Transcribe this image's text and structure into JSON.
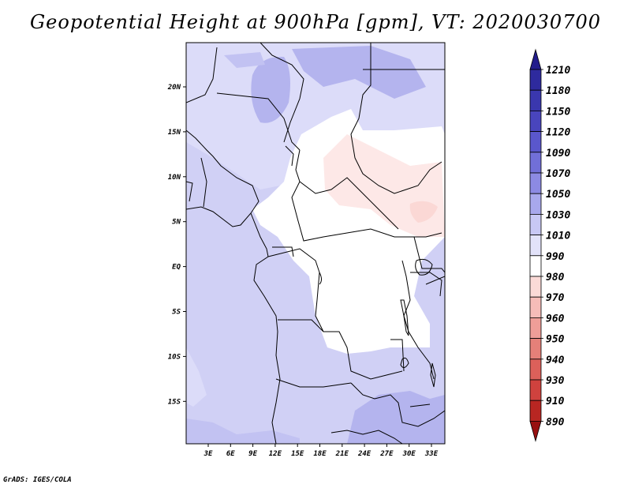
{
  "title": "Geopotential Height at 900hPa [gpm], VT: 2020030700",
  "footer": "GrADS: IGES/COLA",
  "map": {
    "variable": "Geopotential Height",
    "level": "900hPa",
    "units": "gpm",
    "valid_time": "2020030700",
    "lat_labels": [
      "20N",
      "15N",
      "10N",
      "5N",
      "EQ",
      "5S",
      "10S",
      "15S"
    ],
    "lon_labels": [
      "3E",
      "6E",
      "9E",
      "12E",
      "15E",
      "18E",
      "21E",
      "24E",
      "27E",
      "30E",
      "33E"
    ]
  },
  "colorbar": {
    "levels": [
      "1210",
      "1180",
      "1150",
      "1120",
      "1090",
      "1070",
      "1050",
      "1030",
      "1010",
      "990",
      "980",
      "970",
      "960",
      "950",
      "940",
      "930",
      "910",
      "890"
    ],
    "colors": [
      "#221c8c",
      "#2e2a9e",
      "#3a37ae",
      "#4945bd",
      "#5a57cc",
      "#716fd8",
      "#8c8ae3",
      "#a8a8ec",
      "#c8c8f4",
      "#e2e2f9",
      "#ffffff",
      "#fbdad7",
      "#f6bcb8",
      "#ef9e98",
      "#e58079",
      "#dc605a",
      "#cf423e",
      "#b82622",
      "#981010"
    ]
  }
}
